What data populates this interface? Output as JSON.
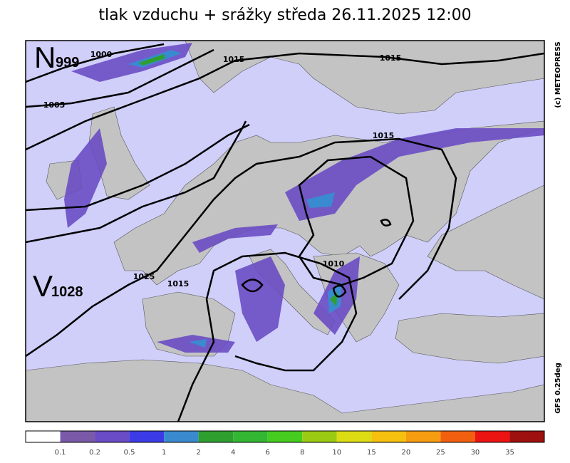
{
  "header": {
    "title": "tlak vzduchu + srážky  středa 26.11.2025 12:00"
  },
  "map": {
    "isobar_labels": [
      "1000",
      "1015",
      "1015",
      "1005",
      "1015",
      "1010",
      "1025",
      "1015"
    ],
    "pressure_centers": [
      {
        "letter": "N",
        "value": "999"
      },
      {
        "letter": "V",
        "value": "1028"
      }
    ],
    "credit": "(c) METEOPRESS",
    "model": "GFS 0.25deg"
  },
  "legend": {
    "colors": [
      "#ffffff",
      "#7a5aa8",
      "#6a4cc4",
      "#3c3ce6",
      "#3a8ad0",
      "#2f9f2f",
      "#33b733",
      "#46cc1e",
      "#9acb12",
      "#dcdc12",
      "#f5c00e",
      "#f59c10",
      "#f2600f",
      "#ec1313",
      "#9e1010"
    ],
    "labels": [
      "0.1",
      "0.2",
      "0.5",
      "1",
      "2",
      "4",
      "6",
      "8",
      "10",
      "15",
      "20",
      "25",
      "30",
      "35"
    ]
  }
}
